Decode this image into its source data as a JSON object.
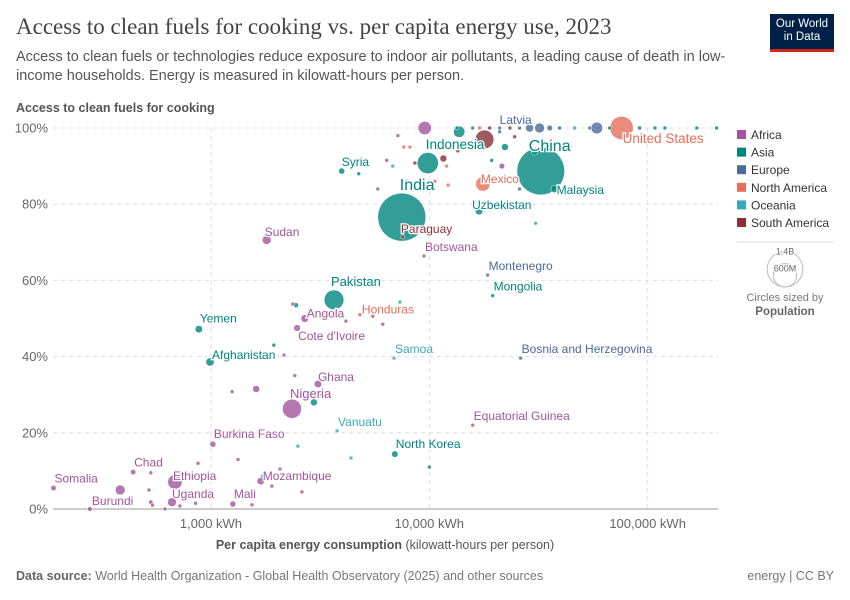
{
  "header": {
    "title": "Access to clean fuels for cooking vs. per capita energy use, 2023",
    "subtitle": "Access to clean fuels or technologies reduce exposure to indoor air pollutants, a leading cause of death in low-income households. Energy is measured in kilowatt-hours per person.",
    "logo": "Our World in Data"
  },
  "footer": {
    "source_label": "Data source:",
    "source": "World Health Organization - Global Health Observatory (2025) and other sources",
    "license": "energy | CC BY"
  },
  "colors": {
    "Africa": "#a2559c",
    "Asia": "#00847e",
    "Europe": "#4c6a9c",
    "North America": "#e56e5a",
    "Oceania": "#38aaba",
    "South America": "#883039"
  },
  "chart_data": {
    "type": "scatter",
    "ylabel": "Access to clean fuels for cooking",
    "xlabel_bold": "Per capita energy consumption",
    "xlabel_rest": "(kilowatt-hours per person)",
    "x_scale": "log",
    "xlim": [
      189,
      210000
    ],
    "ylim": [
      0,
      100
    ],
    "x_ticks": [
      {
        "v": 1000,
        "label": "1,000 kWh"
      },
      {
        "v": 10000,
        "label": "10,000 kWh"
      },
      {
        "v": 100000,
        "label": "100,000 kWh"
      }
    ],
    "y_ticks": [
      {
        "v": 0,
        "label": "0%"
      },
      {
        "v": 20,
        "label": "20%"
      },
      {
        "v": 40,
        "label": "40%"
      },
      {
        "v": 60,
        "label": "60%"
      },
      {
        "v": 80,
        "label": "80%"
      },
      {
        "v": 100,
        "label": "100%"
      }
    ],
    "grid": true,
    "legend": {
      "position": "right",
      "entries": [
        "Africa",
        "Asia",
        "Europe",
        "North America",
        "Oceania",
        "South America"
      ],
      "size_title": "Circles sized by",
      "size_var": "Population",
      "size_refs": [
        {
          "label": "1.4B",
          "pop": 1400
        },
        {
          "label": "600M",
          "pop": 600
        }
      ]
    },
    "points": [
      {
        "name": "Somalia",
        "x": 190,
        "y": 5.5,
        "c": "Africa",
        "pop": 18
      },
      {
        "name": "Burundi",
        "x": 279,
        "y": 0,
        "c": "Africa",
        "pop": 13
      },
      {
        "name": "Chad",
        "x": 440,
        "y": 9.7,
        "c": "Africa",
        "pop": 18
      },
      {
        "name": "Ethiopia",
        "x": 684,
        "y": 7.1,
        "c": "Africa",
        "pop": 130
      },
      {
        "name": "Uganda",
        "x": 663,
        "y": 1.8,
        "c": "Africa",
        "pop": 48
      },
      {
        "name": "Mali",
        "x": 1260,
        "y": 1.3,
        "c": "Africa",
        "pop": 23
      },
      {
        "name": "Mozambique",
        "x": 1690,
        "y": 7.3,
        "c": "Africa",
        "pop": 33
      },
      {
        "name": "Burkina Faso",
        "x": 1020,
        "y": 17,
        "c": "Africa",
        "pop": 23
      },
      {
        "name": "Nigeria",
        "x": 2350,
        "y": 26.3,
        "c": "Africa",
        "pop": 225
      },
      {
        "name": "Ghana",
        "x": 3090,
        "y": 32.8,
        "c": "Africa",
        "pop": 34
      },
      {
        "name": "Vanuatu",
        "x": 3780,
        "y": 20.5,
        "c": "Oceania",
        "pop": 0.3
      },
      {
        "name": "North Korea",
        "x": 6950,
        "y": 14.4,
        "c": "Asia",
        "pop": 26
      },
      {
        "name": "Equatorial Guinea",
        "x": 15800,
        "y": 22,
        "c": "Africa",
        "pop": 1.7
      },
      {
        "name": "Samoa",
        "x": 6890,
        "y": 39.6,
        "c": "Oceania",
        "pop": 0.2
      },
      {
        "name": "Afghanistan",
        "x": 990,
        "y": 38.6,
        "c": "Asia",
        "pop": 42
      },
      {
        "name": "Bosnia and Herzegovina",
        "x": 26200,
        "y": 39.6,
        "c": "Europe",
        "pop": 3.2
      },
      {
        "name": "Cote d'Ivoire",
        "x": 2480,
        "y": 47.5,
        "c": "Africa",
        "pop": 28
      },
      {
        "name": "Yemen",
        "x": 880,
        "y": 47.2,
        "c": "Asia",
        "pop": 34
      },
      {
        "name": "Angola",
        "x": 2690,
        "y": 50,
        "c": "Africa",
        "pop": 36
      },
      {
        "name": "Honduras",
        "x": 4810,
        "y": 51,
        "c": "North America",
        "pop": 10.6
      },
      {
        "name": "Pakistan",
        "x": 3660,
        "y": 54.9,
        "c": "Asia",
        "pop": 240
      },
      {
        "name": "Mongolia",
        "x": 19500,
        "y": 56,
        "c": "Asia",
        "pop": 3.4
      },
      {
        "name": "Montenegro",
        "x": 18500,
        "y": 61.4,
        "c": "Europe",
        "pop": 0.6
      },
      {
        "name": "Botswana",
        "x": 9450,
        "y": 66.4,
        "c": "Africa",
        "pop": 2.6
      },
      {
        "name": "Sudan",
        "x": 1800,
        "y": 70.6,
        "c": "Africa",
        "pop": 48
      },
      {
        "name": "Paraguay",
        "x": 7570,
        "y": 71.4,
        "c": "South America",
        "pop": 6.8
      },
      {
        "name": "India",
        "x": 7480,
        "y": 76.6,
        "c": "Asia",
        "pop": 1430
      },
      {
        "name": "Uzbekistan",
        "x": 16900,
        "y": 78.2,
        "c": "Asia",
        "pop": 36
      },
      {
        "name": "Malaysia",
        "x": 37500,
        "y": 84,
        "c": "Asia",
        "pop": 34
      },
      {
        "name": "China",
        "x": 32400,
        "y": 88.7,
        "c": "Asia",
        "pop": 1410
      },
      {
        "name": "Mexico",
        "x": 17600,
        "y": 85.3,
        "c": "North America",
        "pop": 128
      },
      {
        "name": "Indonesia",
        "x": 9840,
        "y": 90.8,
        "c": "Asia",
        "pop": 278
      },
      {
        "name": "Syria",
        "x": 3970,
        "y": 88.7,
        "c": "Asia",
        "pop": 23
      },
      {
        "name": "Latvia",
        "x": 21000,
        "y": 99,
        "c": "Europe",
        "pop": 1.9
      },
      {
        "name": "United States",
        "x": 76000,
        "y": 100,
        "c": "North America",
        "pop": 335
      },
      {
        "x": 17900,
        "y": 97,
        "c": "South America",
        "pop": 215
      },
      {
        "x": 9530,
        "y": 100,
        "c": "Africa",
        "pop": 110
      },
      {
        "x": 13700,
        "y": 99,
        "c": "Asia",
        "pop": 80
      },
      {
        "x": 22200,
        "y": 95,
        "c": "Asia",
        "pop": 30
      },
      {
        "x": 24600,
        "y": 97.7,
        "c": "South America",
        "pop": 8
      },
      {
        "x": 19300,
        "y": 91.5,
        "c": "Asia",
        "pop": 5
      },
      {
        "x": 13400,
        "y": 100,
        "c": "Asia",
        "pop": 3
      },
      {
        "x": 15800,
        "y": 100,
        "c": "Europe",
        "pop": 2
      },
      {
        "x": 17000,
        "y": 100,
        "c": "North America",
        "pop": 2
      },
      {
        "x": 18900,
        "y": 100,
        "c": "South America",
        "pop": 4
      },
      {
        "x": 21000,
        "y": 100,
        "c": "Europe",
        "pop": 6
      },
      {
        "x": 23400,
        "y": 100,
        "c": "South America",
        "pop": 4
      },
      {
        "x": 25900,
        "y": 100,
        "c": "Europe",
        "pop": 10
      },
      {
        "x": 28800,
        "y": 100,
        "c": "Europe",
        "pop": 40
      },
      {
        "x": 32000,
        "y": 100,
        "c": "Europe",
        "pop": 60
      },
      {
        "x": 35600,
        "y": 100,
        "c": "Europe",
        "pop": 20
      },
      {
        "x": 39500,
        "y": 100,
        "c": "Asia",
        "pop": 3
      },
      {
        "x": 46300,
        "y": 100,
        "c": "Oceania",
        "pop": 1
      },
      {
        "x": 54300,
        "y": 100,
        "c": "Europe",
        "pop": 5
      },
      {
        "x": 58500,
        "y": 100,
        "c": "Europe",
        "pop": 84
      },
      {
        "x": 67000,
        "y": 100,
        "c": "Asia",
        "pop": 9
      },
      {
        "x": 91900,
        "y": 100,
        "c": "Asia",
        "pop": 10
      },
      {
        "x": 108000,
        "y": 100,
        "c": "Asia",
        "pop": 3
      },
      {
        "x": 120000,
        "y": 100,
        "c": "Asia",
        "pop": 1
      },
      {
        "x": 168000,
        "y": 100,
        "c": "Asia",
        "pop": 2
      },
      {
        "x": 207000,
        "y": 100,
        "c": "Asia",
        "pop": 1
      },
      {
        "x": 7180,
        "y": 98,
        "c": "Africa",
        "pop": 5
      },
      {
        "x": 7640,
        "y": 95,
        "c": "North America",
        "pop": 1
      },
      {
        "x": 8150,
        "y": 95,
        "c": "North America",
        "pop": 1
      },
      {
        "x": 6380,
        "y": 91.5,
        "c": "Africa",
        "pop": 1
      },
      {
        "x": 6800,
        "y": 90,
        "c": "Oceania",
        "pop": 1
      },
      {
        "x": 8590,
        "y": 90.8,
        "c": "South America",
        "pop": 1
      },
      {
        "x": 7890,
        "y": 86,
        "c": "Europe",
        "pop": 1
      },
      {
        "x": 5810,
        "y": 84,
        "c": "Africa",
        "pop": 1
      },
      {
        "x": 4750,
        "y": 88,
        "c": "Asia",
        "pop": 1
      },
      {
        "x": 11600,
        "y": 92,
        "c": "South America",
        "pop": 30
      },
      {
        "x": 13500,
        "y": 94,
        "c": "South America",
        "pop": 1
      },
      {
        "x": 12000,
        "y": 90,
        "c": "North America",
        "pop": 1
      },
      {
        "x": 10600,
        "y": 86,
        "c": "North America",
        "pop": 1
      },
      {
        "x": 12200,
        "y": 85,
        "c": "North America",
        "pop": 1
      },
      {
        "x": 21500,
        "y": 90,
        "c": "Africa",
        "pop": 20
      },
      {
        "x": 25900,
        "y": 84,
        "c": "Europe",
        "pop": 1
      },
      {
        "x": 30400,
        "y": 93.7,
        "c": "Asia",
        "pop": 25
      },
      {
        "x": 30700,
        "y": 75,
        "c": "Oceania",
        "pop": 1
      },
      {
        "x": 4190,
        "y": 59.6,
        "c": "North America",
        "pop": 1
      },
      {
        "x": 7330,
        "y": 54.3,
        "c": "Oceania",
        "pop": 1
      },
      {
        "x": 2370,
        "y": 53.8,
        "c": "Africa",
        "pop": 5
      },
      {
        "x": 2450,
        "y": 53.5,
        "c": "Asia",
        "pop": 15
      },
      {
        "x": 6120,
        "y": 48.5,
        "c": "Africa",
        "pop": 2
      },
      {
        "x": 4150,
        "y": 49.3,
        "c": "Africa",
        "pop": 2
      },
      {
        "x": 5510,
        "y": 50.6,
        "c": "Africa",
        "pop": 2
      },
      {
        "x": 1940,
        "y": 43,
        "c": "Asia",
        "pop": 4
      },
      {
        "x": 2160,
        "y": 40.4,
        "c": "Africa",
        "pop": 2
      },
      {
        "x": 2420,
        "y": 35,
        "c": "Africa",
        "pop": 3
      },
      {
        "x": 1250,
        "y": 30.8,
        "c": "Africa",
        "pop": 6
      },
      {
        "x": 1610,
        "y": 31.5,
        "c": "Africa",
        "pop": 30
      },
      {
        "x": 3180,
        "y": 30,
        "c": "Africa",
        "pop": 2
      },
      {
        "x": 2960,
        "y": 28,
        "c": "Asia",
        "pop": 30
      },
      {
        "x": 2500,
        "y": 16.5,
        "c": "Oceania",
        "pop": 1
      },
      {
        "x": 4380,
        "y": 13.4,
        "c": "Oceania",
        "pop": 1
      },
      {
        "x": 10000,
        "y": 11,
        "c": "Asia",
        "pop": 1
      },
      {
        "x": 1330,
        "y": 13,
        "c": "Africa",
        "pop": 2
      },
      {
        "x": 872,
        "y": 12,
        "c": "Africa",
        "pop": 1
      },
      {
        "x": 530,
        "y": 9.5,
        "c": "Africa",
        "pop": 2
      },
      {
        "x": 2070,
        "y": 10.5,
        "c": "Africa",
        "pop": 1
      },
      {
        "x": 2610,
        "y": 4.5,
        "c": "Africa",
        "pop": 2
      },
      {
        "x": 1900,
        "y": 6,
        "c": "Africa",
        "pop": 3
      },
      {
        "x": 1720,
        "y": 8.6,
        "c": "Oceania",
        "pop": 1
      },
      {
        "x": 384,
        "y": 5,
        "c": "Africa",
        "pop": 60
      },
      {
        "x": 520,
        "y": 5,
        "c": "Africa",
        "pop": 8
      },
      {
        "x": 530,
        "y": 1.8,
        "c": "Africa",
        "pop": 12
      },
      {
        "x": 540,
        "y": 1,
        "c": "Africa",
        "pop": 3
      },
      {
        "x": 720,
        "y": 0.8,
        "c": "Africa",
        "pop": 8
      },
      {
        "x": 616,
        "y": 0,
        "c": "Africa",
        "pop": 2
      },
      {
        "x": 850,
        "y": 1.5,
        "c": "Africa",
        "pop": 3
      },
      {
        "x": 1540,
        "y": 1.1,
        "c": "Africa",
        "pop": 4
      }
    ]
  }
}
